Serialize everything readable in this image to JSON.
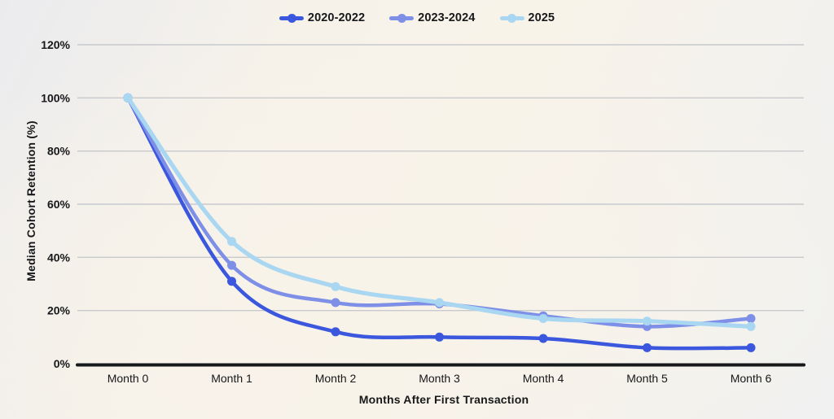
{
  "chart_data": {
    "type": "line",
    "title": "",
    "xlabel": "Months After First Transaction",
    "ylabel": "Median Cohort Retention (%)",
    "categories": [
      "Month 0",
      "Month 1",
      "Month 2",
      "Month 3",
      "Month 4",
      "Month 5",
      "Month 6"
    ],
    "ylim": [
      0,
      120
    ],
    "ytick_step": 20,
    "ytick_labels": [
      "0%",
      "20%",
      "40%",
      "60%",
      "80%",
      "100%",
      "120%"
    ],
    "grid": true,
    "legend_position": "top-center",
    "series": [
      {
        "name": "2020-2022",
        "color": "#3a57de",
        "values": [
          100,
          31,
          12,
          10,
          9.5,
          6,
          6
        ]
      },
      {
        "name": "2023-2024",
        "color": "#7d8fe6",
        "values": [
          100,
          37,
          23,
          22.5,
          18,
          14,
          17
        ]
      },
      {
        "name": "2025",
        "color": "#a9d6f1",
        "values": [
          100,
          46,
          29,
          23,
          17,
          16,
          14
        ]
      }
    ]
  },
  "colors": {
    "grid_line": "#c7c9cc",
    "axis_line": "#17181a",
    "text": "#17181a"
  }
}
